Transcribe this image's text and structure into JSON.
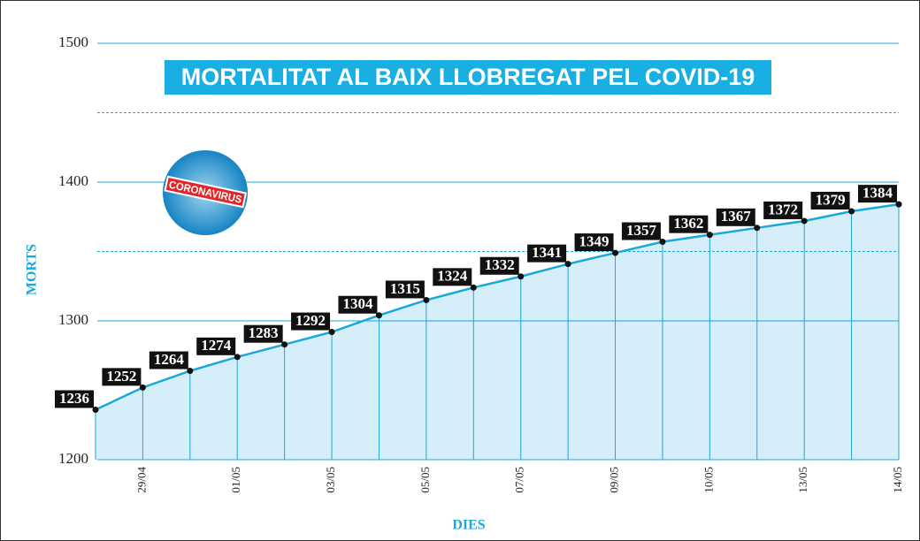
{
  "chart_data": {
    "type": "line",
    "title": "MORTALITAT AL BAIX LLOBREGAT PEL COVID-19",
    "badge": "CORONAVIRUS",
    "x_label": "DIES",
    "y_label": "MORTS",
    "categories": [
      null,
      "29/04",
      null,
      "01/05",
      null,
      "03/05",
      null,
      "05/05",
      null,
      "07/05",
      null,
      "09/05",
      null,
      "10/05",
      null,
      "13/05",
      null,
      "14/05"
    ],
    "values": [
      1236,
      1252,
      1264,
      1274,
      1283,
      1292,
      1304,
      1315,
      1324,
      1332,
      1341,
      1349,
      1357,
      1362,
      1367,
      1372,
      1379,
      1384
    ],
    "color": "#1aa7dc",
    "fill": "#d5eefa",
    "ylim": [
      1200,
      1500
    ],
    "yticks": [
      1200,
      1300,
      1400,
      1500
    ],
    "minor_yticks": [
      1350,
      1450
    ],
    "grid": true
  }
}
